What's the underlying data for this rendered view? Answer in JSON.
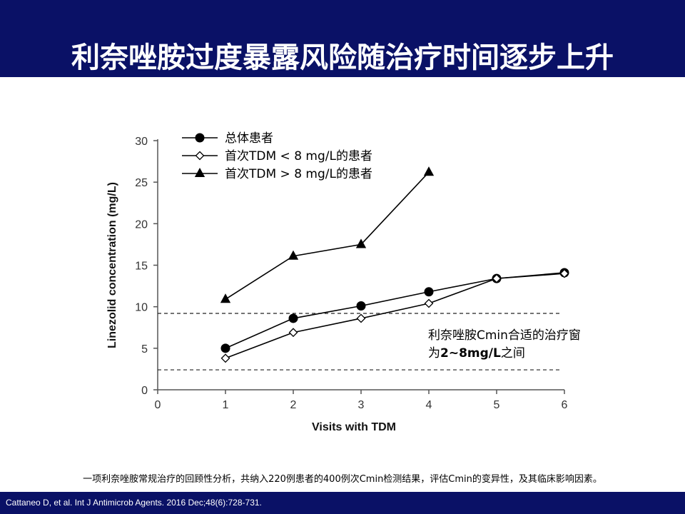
{
  "slide": {
    "title": "利奈唑胺过度暴露风险随治疗时间逐步上升",
    "annotation_line1": "利奈唑胺Cmin合适的治疗窗",
    "annotation_prefix": "为",
    "annotation_bold": "2~8mg/L",
    "annotation_suffix": "之间",
    "summary": "一项利奈唑胺常规治疗的回顾性分析，共纳入220例患者的400例次Cmin检测结果，评估Cmin的变异性，及其临床影响因素。",
    "citation": "Cattaneo D, et al. Int J Antimicrob Agents. 2016 Dec;48(6):728-731."
  },
  "colors": {
    "header_bg": "#0a1166",
    "line": "#000000",
    "axis": "#555555"
  },
  "chart_data": {
    "type": "line",
    "xlabel": "Visits with TDM",
    "ylabel": "Linezolid concentration (mg/L)",
    "xlim": [
      0,
      6
    ],
    "ylim": [
      0,
      30
    ],
    "xticks": [
      "0",
      "1",
      "2",
      "3",
      "4",
      "5",
      "6"
    ],
    "yticks": [
      "0",
      "5",
      "10",
      "15",
      "20",
      "25",
      "30"
    ],
    "legend_position": "top-left",
    "series": [
      {
        "name": "总体患者",
        "marker": "circle-filled",
        "x": [
          1,
          2,
          3,
          4,
          5,
          6
        ],
        "y": [
          5.0,
          8.6,
          10.1,
          11.8,
          13.4,
          14.1
        ]
      },
      {
        "name": "首次TDM < 8 mg/L的患者",
        "marker": "diamond-open",
        "x": [
          1,
          2,
          3,
          4,
          5,
          6
        ],
        "y": [
          3.8,
          6.9,
          8.6,
          10.4,
          13.4,
          14.0
        ]
      },
      {
        "name": "首次TDM > 8 mg/L的患者",
        "marker": "triangle-filled",
        "x": [
          1,
          2,
          3,
          4
        ],
        "y": [
          10.9,
          16.1,
          17.5,
          26.2
        ]
      }
    ],
    "reference_lines": [
      9.2,
      2.4
    ]
  }
}
